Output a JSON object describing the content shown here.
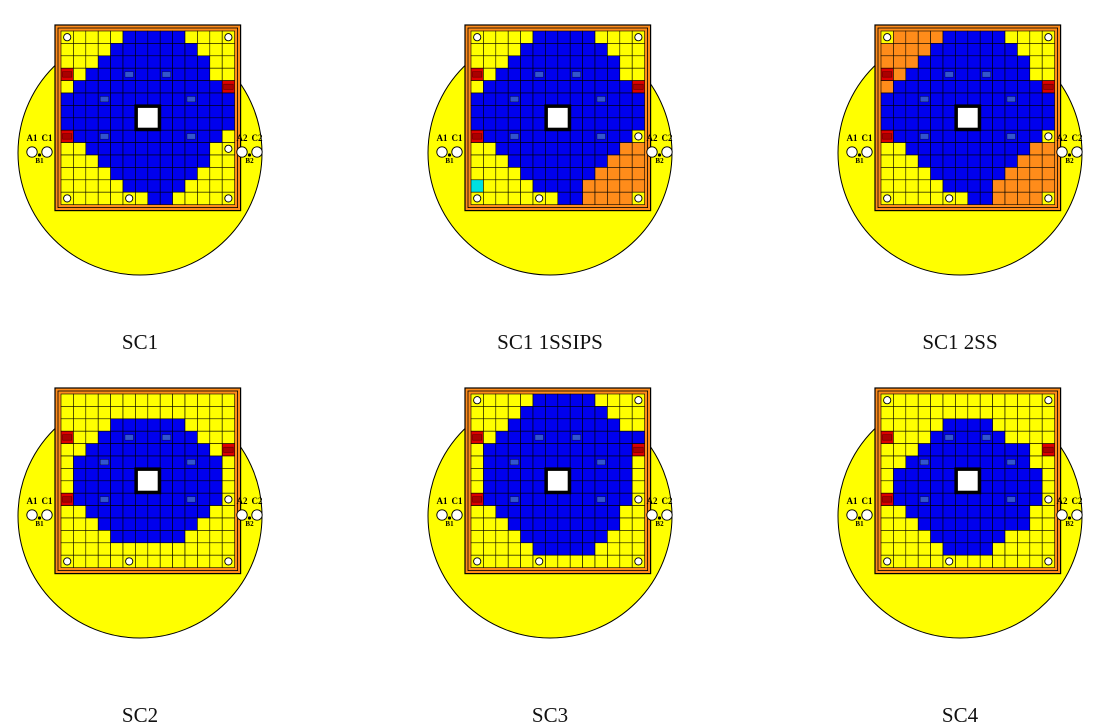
{
  "colors": {
    "fuel": "#0000ee",
    "reflector": "#ffff00",
    "orange": "#ff8c1a",
    "control_rod": "#dd0000",
    "grid_line": "#000000",
    "pool": "#ffff00",
    "water": "#ffffff",
    "ips": "#00e0e0"
  },
  "labels": {
    "a1": "A1",
    "b1": "B1",
    "c1": "C1",
    "a2": "A2",
    "b2": "B2",
    "c2": "C2"
  },
  "icons": {
    "hole": "small-white-circle",
    "detector": "white-circle"
  },
  "configs": [
    {
      "caption": "SC1",
      "grid": [
        "HYYYYBBBBBYYYH",
        "YYYYBBBBBBBYYY",
        "YYYBBBBBBBBBYY",
        "RYBBBBBBBBBBYY",
        "YBBBBBBBBBBBBR",
        "BBBBBBBBBBBBBB",
        "BBBBBBBBBBBBBB",
        "BBBBBBBBBBBBBB",
        "RBBBBBBBBBBBBY",
        "YYBBBBBBBBBBYH",
        "YYYBBBBBBBBBYY",
        "YYYYBBBBBBBYYY",
        "YYYYYBBBBBYYYY",
        "HYYYYHYBBYYYYH"
      ]
    },
    {
      "caption": "SC1 1SSIPS",
      "grid": [
        "HYYYYBBBBBYYYH",
        "YYYYBBBBBBBYYY",
        "YYYBBBBBBBBBYY",
        "RYBBBBBBBBBBYY",
        "YBBBBBBBBBBBBR",
        "BBBBBBBBBBBBBB",
        "BBBBBBBBBBBBBB",
        "BBBBBBBBBBBBBB",
        "RBBBBBBBBBBBBH",
        "YYBBBBBBBBBBOO",
        "YYYBBBBBBBBOOO",
        "YYYYBBBBBBOOOO",
        "CYYYYBBBBOOOOO",
        "HYYYYHYBBOOOOH"
      ]
    },
    {
      "caption": "SC1 2SS",
      "grid": [
        "HOOOOBBBBBYYYH",
        "OOOOBBBBBBBYYY",
        "OOOBBBBBBBBBYY",
        "ROBBBBBBBBBBYY",
        "OBBBBBBBBBBBBR",
        "BBBBBBBBBBBBBB",
        "BBBBBBBBBBBBBB",
        "BBBBBBBBBBBBBB",
        "RBBBBBBBBBBBBH",
        "YYBBBBBBBBBBOO",
        "YYYBBBBBBBBOOO",
        "YYYYBBBBBBOOOO",
        "YYYYYBBBBOOOOO",
        "HYYYYHYBBOOOOH"
      ]
    },
    {
      "caption": "SC2",
      "grid": [
        "YYYYYYYYYYYYYY",
        "YYYYYYYYYYYYYY",
        "YYYYBBBBBBYYYY",
        "RYYBBBBBBBBYYY",
        "YYBBBBBBBBBBYR",
        "YBBBBBBBBBBBBY",
        "YBBBBBBBBBBBBY",
        "YBBBBBBBBBBBBY",
        "RBBBBBBBBBBBBH",
        "YYBBBBBBBBBBYY",
        "YYYBBBBBBBBYYY",
        "YYYYBBBBBBYYYY",
        "YYYYYYYYYYYYYY",
        "HYYYYHYYYYYYYH"
      ]
    },
    {
      "caption": "SC3",
      "grid": [
        "HYYYYBBBBBYYYH",
        "YYYYBBBBBBBYYY",
        "YYYBBBBBBBBBYY",
        "RYBBBBBBBBBBBB",
        "YBBBBBBBBBBBBR",
        "YBBBBBBBBBBBBY",
        "YBBBBBBBBBBBBY",
        "YBBBBBBBBBBBBY",
        "RBBBBBBBBBBBBH",
        "YYBBBBBBBBBBYY",
        "YYYBBBBBBBBBYY",
        "YYYYBBBBBBBYYY",
        "YYYYYBBBBBYYYY",
        "HYYYYHYYYYYYYH"
      ]
    },
    {
      "caption": "SC4",
      "grid": [
        "HYYYYYYYYYYYYH",
        "YYYYYYYYYYYYYY",
        "YYYYYBBBBYYYYY",
        "RYYYBBBBBBYYYY",
        "YYYBBBBBBBBBYR",
        "YYBBBBBBBBBBYY",
        "YBBBBBBBBBBBBY",
        "YBBBBBBBBBBBBY",
        "RBBBBBBBBBBBBH",
        "YYBBBBBBBBBBYY",
        "YYYBBBBBBBBBYY",
        "YYYYBBBBBBYYYY",
        "YYYYYBBBBYYYYY",
        "HYYYYHYYYYYYYH"
      ]
    }
  ]
}
